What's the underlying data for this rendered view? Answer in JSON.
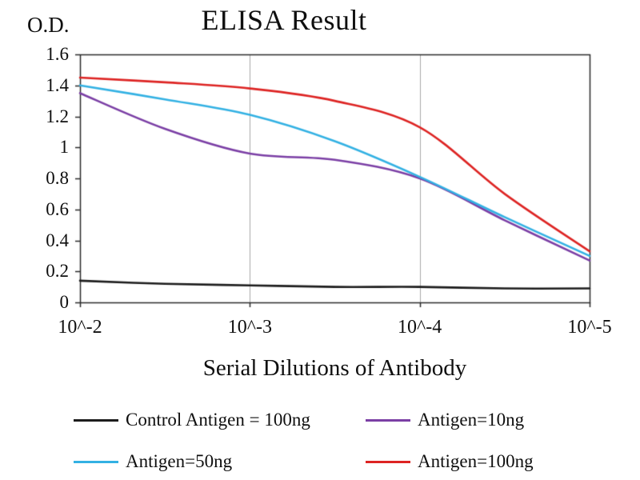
{
  "chart_data": {
    "type": "line",
    "title": "ELISA Result",
    "xlabel": "Serial Dilutions of Antibody",
    "ylabel": "O.D.",
    "x_scale": "log10-exponent",
    "x": [
      -2,
      -2.5,
      -3,
      -3.5,
      -4,
      -4.5,
      -5
    ],
    "xlim": [
      -2,
      -5
    ],
    "ylim": [
      0,
      1.6
    ],
    "y_ticks": [
      "0",
      "0.2",
      "0.4",
      "0.6",
      "0.8",
      "1",
      "1.2",
      "1.4",
      "1.6"
    ],
    "x_ticks": [
      {
        "exp": -2,
        "label": "10^-2"
      },
      {
        "exp": -3,
        "label": "10^-3"
      },
      {
        "exp": -4,
        "label": "10^-4"
      },
      {
        "exp": -5,
        "label": "10^-5"
      }
    ],
    "grid": "vertical-major",
    "legend_position": "bottom",
    "series": [
      {
        "name": "Control Antigen = 100ng",
        "color": "#1c1c1c",
        "values": [
          0.14,
          0.12,
          0.11,
          0.1,
          0.1,
          0.09,
          0.09
        ]
      },
      {
        "name": "Antigen=10ng",
        "color": "#7b3fa5",
        "values": [
          1.35,
          1.12,
          0.96,
          0.92,
          0.8,
          0.53,
          0.27
        ]
      },
      {
        "name": "Antigen=50ng",
        "color": "#33b1e3",
        "values": [
          1.4,
          1.31,
          1.21,
          1.04,
          0.81,
          0.55,
          0.3
        ]
      },
      {
        "name": "Antigen=100ng",
        "color": "#dd2423",
        "values": [
          1.45,
          1.42,
          1.38,
          1.3,
          1.13,
          0.7,
          0.33
        ]
      }
    ]
  },
  "colors": {
    "grid": "#a9a9a9",
    "axis": "#2b2b2b",
    "background": "#ffffff",
    "text": "#0f0f0f"
  }
}
